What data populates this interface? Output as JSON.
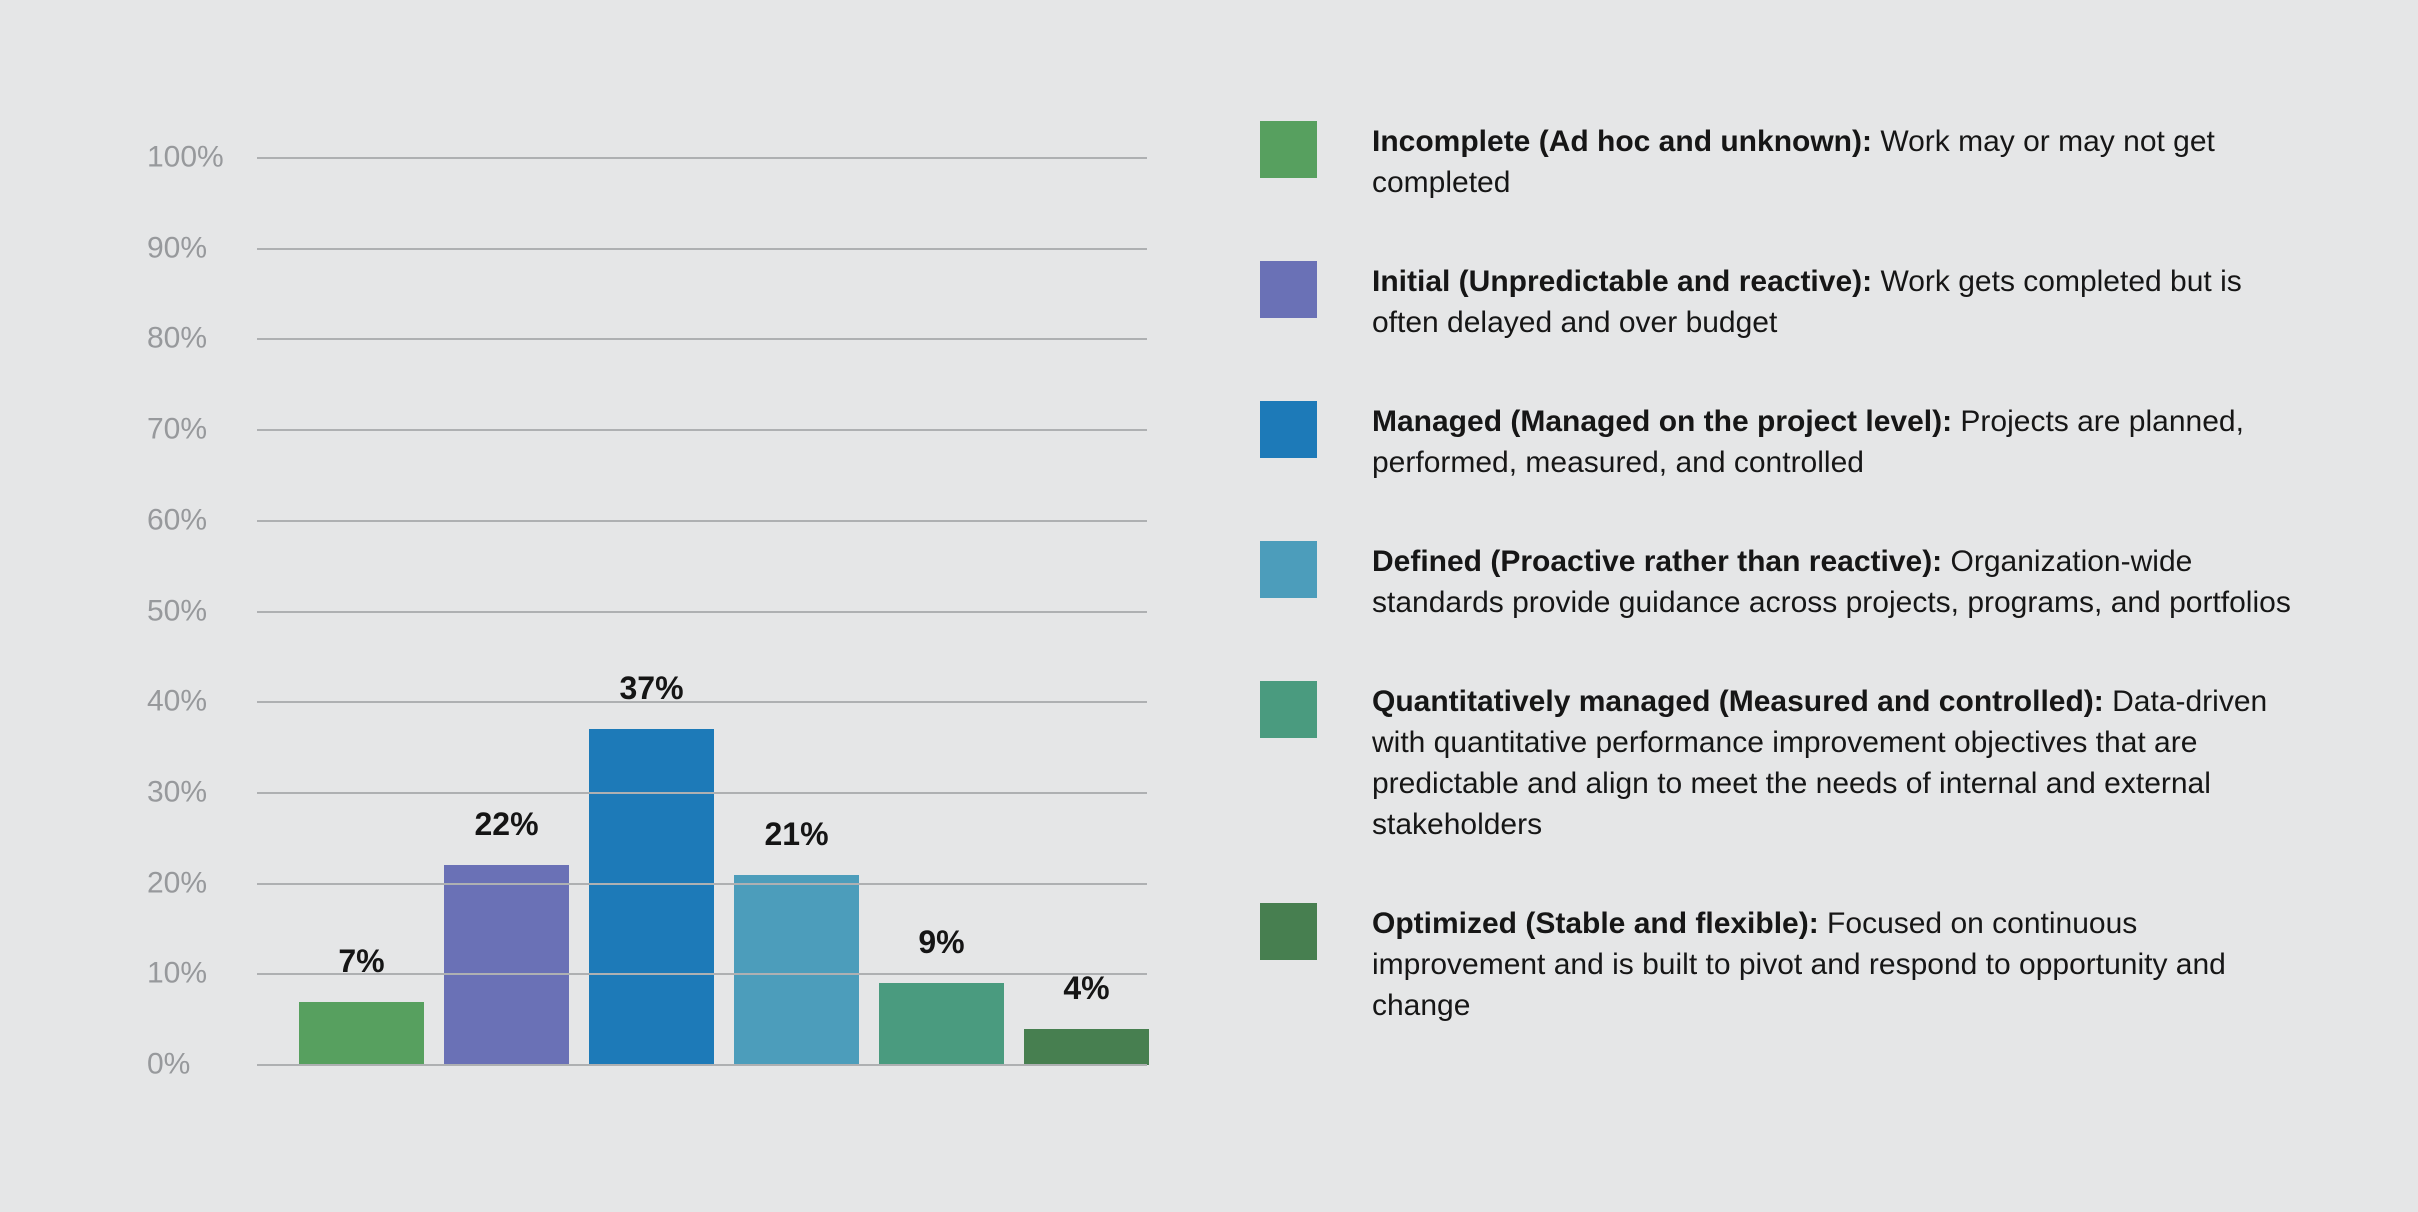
{
  "background_color": "#e5e6e7",
  "chart_data": {
    "type": "bar",
    "title": "",
    "xlabel": "",
    "ylabel": "",
    "categories": [
      "Incomplete (Ad hoc and unknown)",
      "Initial (Unpredictable and reactive)",
      "Managed (Managed on the project level)",
      "Defined (Proactive rather than reactive)",
      "Quantitatively managed (Measured and controlled)",
      "Optimized (Stable and flexible)"
    ],
    "values": [
      7,
      22,
      37,
      21,
      9,
      4
    ],
    "value_labels": [
      "7%",
      "22%",
      "37%",
      "21%",
      "9%",
      "4%"
    ],
    "colors": [
      "#57a05f",
      "#6a71b6",
      "#1d7ab8",
      "#4c9dbb",
      "#4a9b7f",
      "#477f50"
    ],
    "ylim": [
      0,
      100
    ],
    "yticks": [
      "100%",
      "90%",
      "80%",
      "70%",
      "60%",
      "50%",
      "40%",
      "30%",
      "20%",
      "10%",
      "0%"
    ],
    "grid": true,
    "gridline_color": "#aeb0b2",
    "tick_label_color": "#97999c",
    "value_label_color": "#151515",
    "legend_position": "right"
  },
  "legend": {
    "items": [
      {
        "label": "Incomplete (Ad hoc and unknown):",
        "description": "Work may or may not get completed",
        "color": "#57a05f"
      },
      {
        "label": "Initial (Unpredictable and reactive):",
        "description": "Work gets completed but is often delayed and over budget",
        "color": "#6a71b6"
      },
      {
        "label": "Managed (Managed on the project level):",
        "description": "Projects are planned, performed, measured, and controlled",
        "color": "#1d7ab8"
      },
      {
        "label": "Defined (Proactive rather than reactive):",
        "description": "Organization-wide standards provide guidance across projects, programs, and portfolios",
        "color": "#4c9dbb"
      },
      {
        "label": "Quantitatively managed (Measured and controlled):",
        "description": "Data-driven with quantitative performance improvement objectives that are predictable and align to meet the needs of internal and external stakeholders",
        "color": "#4a9b7f"
      },
      {
        "label": "Optimized (Stable and flexible):",
        "description": "Focused on continuous improvement and is built to pivot and respond to opportunity and change",
        "color": "#477f50"
      }
    ]
  }
}
